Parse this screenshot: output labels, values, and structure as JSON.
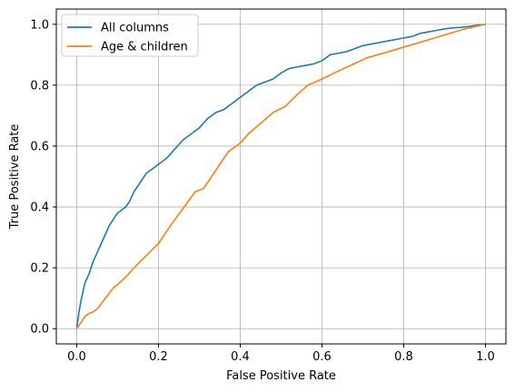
{
  "chart_data": {
    "type": "line",
    "title": "",
    "xlabel": "False Positive Rate",
    "ylabel": "True Positive Rate",
    "xlim": [
      -0.05,
      1.05
    ],
    "ylim": [
      -0.05,
      1.05
    ],
    "xticks": [
      0.0,
      0.2,
      0.4,
      0.6,
      0.8,
      1.0
    ],
    "yticks": [
      0.0,
      0.2,
      0.4,
      0.6,
      0.8,
      1.0
    ],
    "xtick_labels": [
      "0.0",
      "0.2",
      "0.4",
      "0.6",
      "0.8",
      "1.0"
    ],
    "ytick_labels": [
      "0.0",
      "0.2",
      "0.4",
      "0.6",
      "0.8",
      "1.0"
    ],
    "grid": true,
    "legend_position": "top-left",
    "series": [
      {
        "name": "All columns",
        "color": "#1f77b4",
        "x": [
          0.0,
          0.005,
          0.01,
          0.015,
          0.02,
          0.03,
          0.04,
          0.05,
          0.06,
          0.07,
          0.08,
          0.09,
          0.1,
          0.11,
          0.12,
          0.13,
          0.14,
          0.15,
          0.16,
          0.17,
          0.18,
          0.2,
          0.22,
          0.24,
          0.26,
          0.28,
          0.3,
          0.32,
          0.34,
          0.36,
          0.38,
          0.4,
          0.42,
          0.44,
          0.46,
          0.48,
          0.5,
          0.52,
          0.54,
          0.56,
          0.58,
          0.6,
          0.62,
          0.64,
          0.66,
          0.68,
          0.7,
          0.72,
          0.74,
          0.76,
          0.78,
          0.8,
          0.82,
          0.84,
          0.86,
          0.88,
          0.9,
          0.92,
          0.94,
          0.96,
          0.98,
          1.0
        ],
        "y": [
          0.0,
          0.05,
          0.09,
          0.12,
          0.15,
          0.18,
          0.22,
          0.25,
          0.28,
          0.31,
          0.34,
          0.36,
          0.38,
          0.39,
          0.4,
          0.42,
          0.45,
          0.47,
          0.49,
          0.51,
          0.52,
          0.54,
          0.56,
          0.59,
          0.62,
          0.64,
          0.66,
          0.69,
          0.71,
          0.72,
          0.74,
          0.76,
          0.78,
          0.8,
          0.81,
          0.82,
          0.84,
          0.855,
          0.86,
          0.865,
          0.87,
          0.88,
          0.9,
          0.905,
          0.91,
          0.92,
          0.93,
          0.935,
          0.94,
          0.945,
          0.95,
          0.955,
          0.96,
          0.97,
          0.975,
          0.98,
          0.985,
          0.988,
          0.99,
          0.993,
          0.997,
          1.0
        ]
      },
      {
        "name": "Age & children",
        "color": "#ff7f0e",
        "x": [
          0.0,
          0.01,
          0.02,
          0.03,
          0.04,
          0.05,
          0.07,
          0.09,
          0.1,
          0.12,
          0.14,
          0.17,
          0.2,
          0.23,
          0.26,
          0.29,
          0.31,
          0.33,
          0.35,
          0.37,
          0.39,
          0.4,
          0.42,
          0.45,
          0.48,
          0.51,
          0.54,
          0.565,
          0.6,
          0.63,
          0.67,
          0.71,
          0.75,
          0.8,
          0.85,
          0.9,
          0.95,
          1.0
        ],
        "y": [
          0.0,
          0.02,
          0.04,
          0.05,
          0.055,
          0.065,
          0.1,
          0.135,
          0.145,
          0.17,
          0.2,
          0.24,
          0.28,
          0.34,
          0.395,
          0.45,
          0.46,
          0.5,
          0.54,
          0.58,
          0.6,
          0.61,
          0.64,
          0.675,
          0.71,
          0.73,
          0.77,
          0.8,
          0.82,
          0.84,
          0.865,
          0.89,
          0.905,
          0.925,
          0.945,
          0.965,
          0.985,
          1.0
        ]
      }
    ]
  }
}
